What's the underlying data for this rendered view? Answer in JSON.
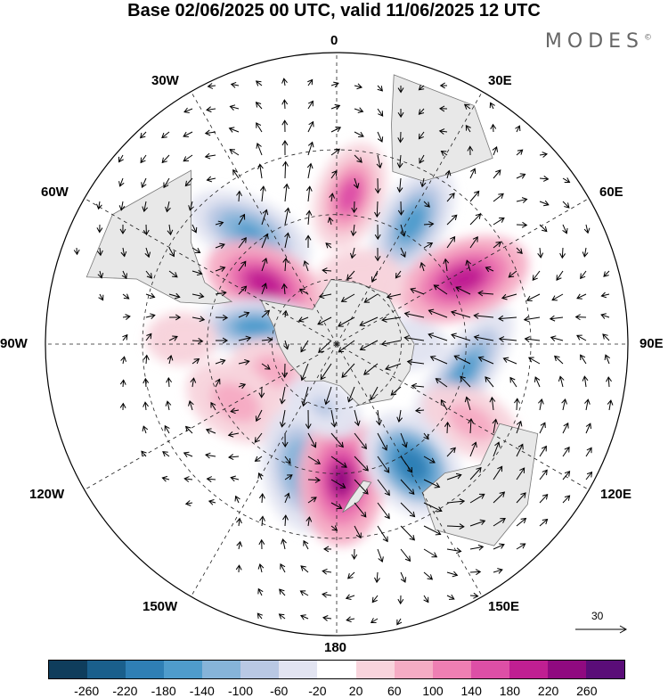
{
  "title": "Base 02/06/2025 00 UTC, valid 11/06/2025 12 UTC",
  "brand": "MODES",
  "brand_mark": "©",
  "longitude_labels": {
    "lon_0": "0",
    "lon_30e": "30E",
    "lon_60e": "60E",
    "lon_90e": "90E",
    "lon_120e": "120E",
    "lon_150e": "150E",
    "lon_180": "180",
    "lon_150w": "150W",
    "lon_120w": "120W",
    "lon_90w": "90W",
    "lon_60w": "60W",
    "lon_30w": "30W"
  },
  "reference_vector": {
    "label": "30"
  },
  "colorbar": {
    "ticks": [
      "-260",
      "-220",
      "-180",
      "-140",
      "-100",
      "-60",
      "-20",
      "20",
      "60",
      "100",
      "140",
      "180",
      "220",
      "260"
    ],
    "colors": [
      "#0f3d5c",
      "#1a5f8c",
      "#2f7fb5",
      "#4f9ccc",
      "#86b4d9",
      "#b9c8e4",
      "#e2e4f1",
      "#ffffff",
      "#f8d4dc",
      "#f5acc4",
      "#ee7fb3",
      "#dd4fa6",
      "#c01f92",
      "#900a80",
      "#5a0d78"
    ]
  },
  "anomaly_centres": [
    {
      "lon": 5,
      "lat": -44,
      "value": 160,
      "major": 62,
      "minor": 38,
      "angle": -70
    },
    {
      "lon": 32,
      "lat": -46,
      "value": -170,
      "major": 70,
      "minor": 38,
      "angle": -60
    },
    {
      "lon": -38,
      "lat": -46,
      "value": -150,
      "major": 74,
      "minor": 38,
      "angle": 25
    },
    {
      "lon": -50,
      "lat": -61,
      "value": 220,
      "major": 70,
      "minor": 42,
      "angle": 25
    },
    {
      "lon": 63,
      "lat": -46,
      "value": 200,
      "major": 76,
      "minor": 44,
      "angle": -20
    },
    {
      "lon": 22,
      "lat": -70,
      "value": 60,
      "major": 50,
      "minor": 40,
      "angle": 0
    },
    {
      "lon": -78,
      "lat": -64,
      "value": -170,
      "major": 70,
      "minor": 32,
      "angle": 0
    },
    {
      "lon": 104,
      "lat": -50,
      "value": -170,
      "major": 90,
      "minor": 32,
      "angle": 125
    },
    {
      "lon": -113,
      "lat": -69,
      "value": 100,
      "major": 50,
      "minor": 34,
      "angle": 20
    },
    {
      "lon": -120,
      "lat": -54,
      "value": 100,
      "major": 60,
      "minor": 40,
      "angle": 30
    },
    {
      "lon": 120,
      "lat": -42,
      "value": 90,
      "major": 60,
      "minor": 36,
      "angle": 30
    },
    {
      "lon": -165,
      "lat": -50,
      "value": -140,
      "major": 72,
      "minor": 46,
      "angle": 80
    },
    {
      "lon": 178,
      "lat": -48,
      "value": 230,
      "major": 74,
      "minor": 48,
      "angle": 90
    },
    {
      "lon": 148,
      "lat": -46,
      "value": -200,
      "major": 66,
      "minor": 48,
      "angle": 50
    },
    {
      "lon": -168,
      "lat": -70,
      "value": -80,
      "major": 46,
      "minor": 30,
      "angle": 30
    },
    {
      "lon": -88,
      "lat": -42,
      "value": 60,
      "major": 40,
      "minor": 30,
      "angle": 0
    },
    {
      "lon": 90,
      "lat": -70,
      "value": -40,
      "major": 50,
      "minor": 30,
      "angle": 0
    }
  ]
}
